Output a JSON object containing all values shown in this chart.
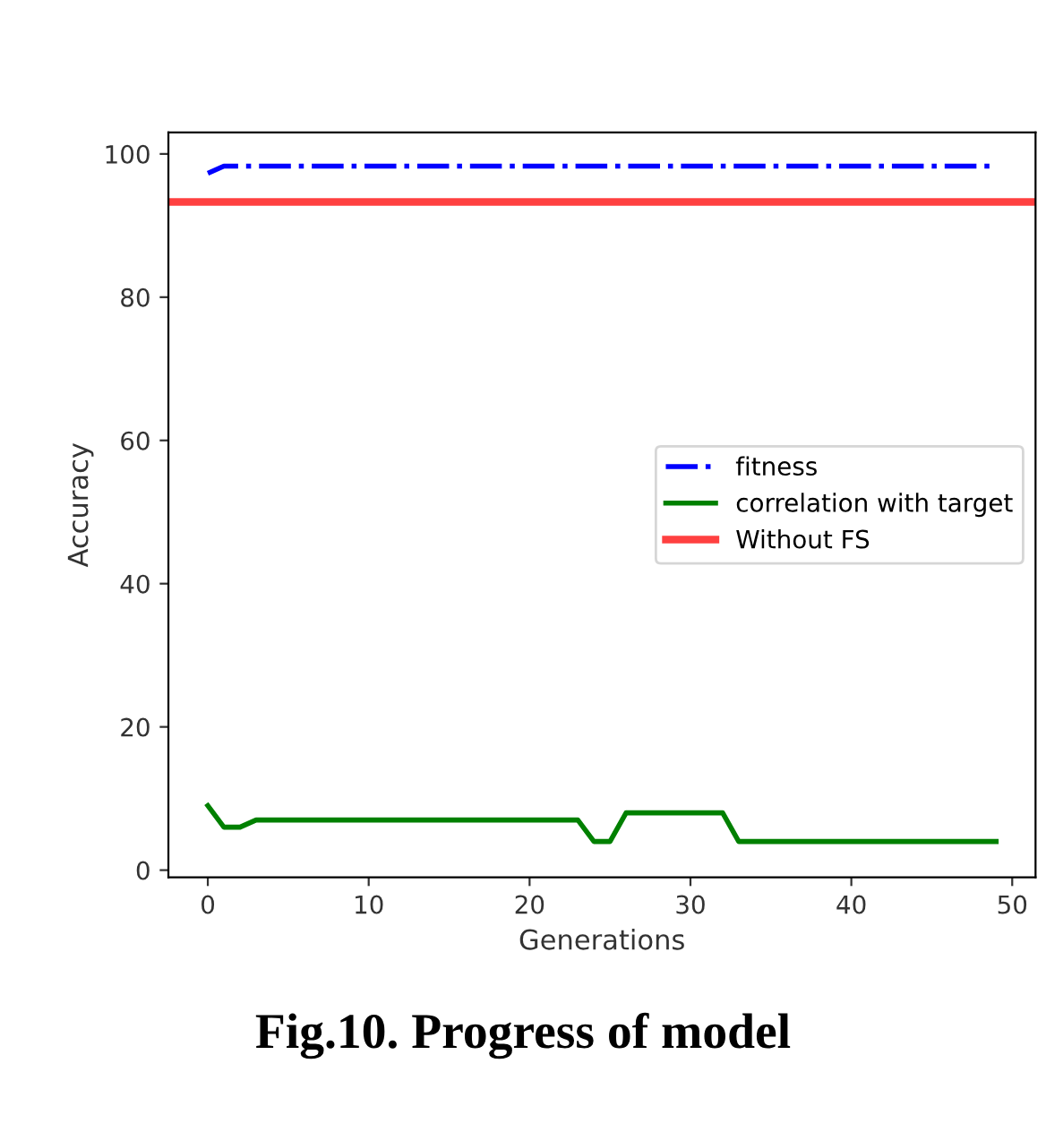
{
  "chart_data": {
    "type": "line",
    "xlabel": "Generations",
    "ylabel": "Accuracy",
    "x": [
      0,
      1,
      2,
      3,
      4,
      5,
      6,
      7,
      8,
      9,
      10,
      11,
      12,
      13,
      14,
      15,
      16,
      17,
      18,
      19,
      20,
      21,
      22,
      23,
      24,
      25,
      26,
      27,
      28,
      29,
      30,
      31,
      32,
      33,
      34,
      35,
      36,
      37,
      38,
      39,
      40,
      41,
      42,
      43,
      44,
      45,
      46,
      47,
      48,
      49
    ],
    "series": [
      {
        "name": "fitness",
        "color": "#0000ff",
        "line_style": "dashdot",
        "values": [
          97.3,
          98.3,
          98.3,
          98.3,
          98.3,
          98.3,
          98.3,
          98.3,
          98.3,
          98.3,
          98.3,
          98.3,
          98.3,
          98.3,
          98.3,
          98.3,
          98.3,
          98.3,
          98.3,
          98.3,
          98.3,
          98.3,
          98.3,
          98.3,
          98.3,
          98.3,
          98.3,
          98.3,
          98.3,
          98.3,
          98.3,
          98.3,
          98.3,
          98.3,
          98.3,
          98.3,
          98.3,
          98.3,
          98.3,
          98.3,
          98.3,
          98.3,
          98.3,
          98.3,
          98.3,
          98.3,
          98.3,
          98.3,
          98.3,
          98.3
        ]
      },
      {
        "name": "correlation with target",
        "color": "#008000",
        "line_style": "solid",
        "values": [
          9,
          6,
          6,
          7,
          7,
          7,
          7,
          7,
          7,
          7,
          7,
          7,
          7,
          7,
          7,
          7,
          7,
          7,
          7,
          7,
          7,
          7,
          7,
          7,
          4,
          4,
          8,
          8,
          8,
          8,
          8,
          8,
          8,
          4,
          4,
          4,
          4,
          4,
          4,
          4,
          4,
          4,
          4,
          4,
          4,
          4,
          4,
          4,
          4,
          4
        ]
      }
    ],
    "ref_lines": [
      {
        "axis": "y",
        "value": 93.3,
        "label": "Without FS",
        "color": "#ff0000",
        "line_style": "solid"
      }
    ],
    "xlim": [
      -2.45,
      51.45
    ],
    "ylim": [
      -1,
      103
    ],
    "xticks": [
      0,
      10,
      20,
      30,
      40,
      50
    ],
    "yticks": [
      0,
      20,
      40,
      60,
      80,
      100
    ],
    "grid": false,
    "legend": "right",
    "annotations": [
      "Fig.10. Progress of model"
    ]
  }
}
